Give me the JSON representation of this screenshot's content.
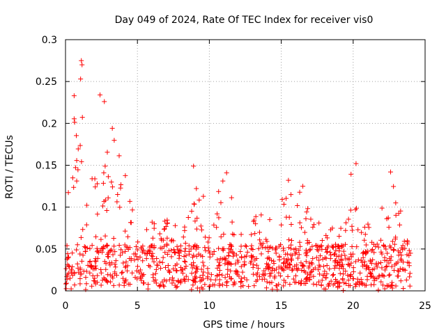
{
  "chart_data": {
    "type": "scatter",
    "title": "Day 049 of 2024, Rate Of TEC Index for receiver vis0",
    "xlabel": "GPS time / hours",
    "ylabel": "ROTI / TECUs",
    "xlim": [
      0,
      25
    ],
    "ylim": [
      0,
      0.3
    ],
    "xticks": [
      0,
      5,
      10,
      15,
      20,
      25
    ],
    "yticks": [
      0,
      0.05,
      0.1,
      0.15,
      0.2,
      0.25,
      0.3
    ],
    "xtick_labels": [
      "0",
      "5",
      "10",
      "15",
      "20",
      "25"
    ],
    "ytick_labels": [
      "0",
      "0.05",
      "0.1",
      "0.15",
      "0.2",
      "0.25",
      "0.3"
    ],
    "grid": true,
    "marker": "+",
    "color": "#ff0000",
    "series": [
      {
        "name": "ROTI",
        "x_range": [
          0,
          24
        ],
        "dense_band_max": 0.05,
        "envelope": [
          {
            "x": 0.0,
            "upper": 0.12
          },
          {
            "x": 0.25,
            "upper": 0.22
          },
          {
            "x": 0.5,
            "upper": 0.21
          },
          {
            "x": 0.75,
            "upper": 0.23
          },
          {
            "x": 1.0,
            "upper": 0.27
          },
          {
            "x": 1.5,
            "upper": 0.16
          },
          {
            "x": 2.0,
            "upper": 0.19
          },
          {
            "x": 2.5,
            "upper": 0.23
          },
          {
            "x": 3.0,
            "upper": 0.2
          },
          {
            "x": 3.5,
            "upper": 0.19
          },
          {
            "x": 4.0,
            "upper": 0.15
          },
          {
            "x": 4.5,
            "upper": 0.13
          },
          {
            "x": 5.0,
            "upper": 0.07
          },
          {
            "x": 6.0,
            "upper": 0.09
          },
          {
            "x": 7.0,
            "upper": 0.09
          },
          {
            "x": 8.0,
            "upper": 0.1
          },
          {
            "x": 9.0,
            "upper": 0.15
          },
          {
            "x": 10.0,
            "upper": 0.11
          },
          {
            "x": 11.0,
            "upper": 0.14
          },
          {
            "x": 12.0,
            "upper": 0.09
          },
          {
            "x": 13.0,
            "upper": 0.1
          },
          {
            "x": 14.0,
            "upper": 0.09
          },
          {
            "x": 15.5,
            "upper": 0.13
          },
          {
            "x": 16.5,
            "upper": 0.12
          },
          {
            "x": 17.0,
            "upper": 0.09
          },
          {
            "x": 18.0,
            "upper": 0.08
          },
          {
            "x": 19.0,
            "upper": 0.08
          },
          {
            "x": 20.0,
            "upper": 0.15
          },
          {
            "x": 21.0,
            "upper": 0.08
          },
          {
            "x": 22.0,
            "upper": 0.1
          },
          {
            "x": 22.5,
            "upper": 0.14
          },
          {
            "x": 23.0,
            "upper": 0.12
          },
          {
            "x": 24.0,
            "upper": 0.1
          }
        ],
        "notable_points": [
          {
            "x": 1.1,
            "y": 0.275
          },
          {
            "x": 1.15,
            "y": 0.27
          },
          {
            "x": 1.05,
            "y": 0.253
          },
          {
            "x": 2.4,
            "y": 0.234
          },
          {
            "x": 0.6,
            "y": 0.233
          },
          {
            "x": 2.7,
            "y": 0.226
          },
          {
            "x": 8.9,
            "y": 0.149
          },
          {
            "x": 11.2,
            "y": 0.141
          },
          {
            "x": 15.5,
            "y": 0.132
          },
          {
            "x": 16.5,
            "y": 0.125
          },
          {
            "x": 20.2,
            "y": 0.152
          },
          {
            "x": 22.6,
            "y": 0.142
          }
        ]
      }
    ]
  }
}
